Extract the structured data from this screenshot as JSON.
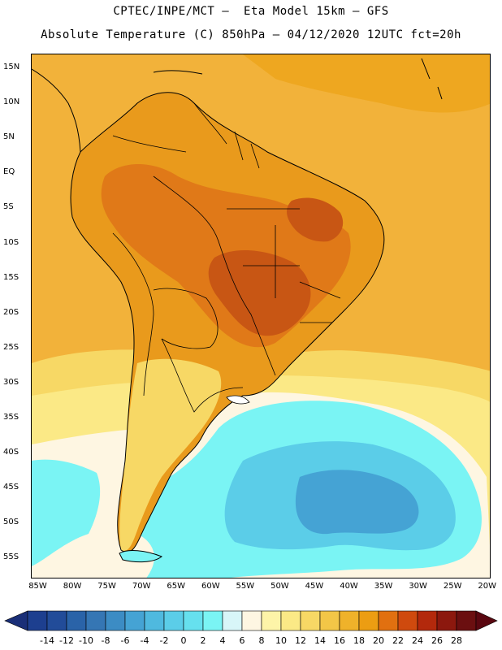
{
  "header": {
    "title_line1": "CPTEC/INPE/MCT –  Eta Model 15km – GFS",
    "title_line2": "Absolute Temperature (C) 850hPa – 04/12/2020 12UTC fct=20h"
  },
  "map": {
    "region": "South America",
    "lat_range": [
      -58,
      17
    ],
    "lon_range": [
      -86,
      -19.5
    ],
    "lat_labels": [
      "15N",
      "10N",
      "5N",
      "EQ",
      "5S",
      "10S",
      "15S",
      "20S",
      "25S",
      "30S",
      "35S",
      "40S",
      "45S",
      "50S",
      "55S"
    ],
    "lat_values": [
      15,
      10,
      5,
      0,
      -5,
      -10,
      -15,
      -20,
      -25,
      -30,
      -35,
      -40,
      -45,
      -50,
      -55
    ],
    "lon_labels": [
      "85W",
      "80W",
      "75W",
      "70W",
      "65W",
      "60W",
      "55W",
      "50W",
      "45W",
      "40W",
      "35W",
      "30W",
      "25W",
      "20W"
    ],
    "lon_values": [
      -85,
      -80,
      -75,
      -70,
      -65,
      -60,
      -55,
      -50,
      -45,
      -40,
      -35,
      -30,
      -25,
      -20
    ]
  },
  "colorbar": {
    "levels": [
      "-14",
      "-12",
      "-10",
      "-8",
      "-6",
      "-4",
      "-2",
      "0",
      "2",
      "4",
      "6",
      "8",
      "10",
      "12",
      "14",
      "16",
      "18",
      "20",
      "22",
      "24",
      "26",
      "28"
    ],
    "colors": [
      "#1d3f8f",
      "#224c99",
      "#2a63a8",
      "#3576b4",
      "#3c8cc4",
      "#45a3d4",
      "#4fb9df",
      "#5bcde8",
      "#66e0ee",
      "#7af4f4",
      "#d8f6f8",
      "#fef6e2",
      "#fdf4a8",
      "#fbe986",
      "#f7d865",
      "#f3c647",
      "#efb22a",
      "#ec9d12",
      "#e17010",
      "#cf4a0e",
      "#b3290c",
      "#8c180e",
      "#6b0f10"
    ],
    "under_color": "#1a2f78",
    "over_color": "#5a0710"
  },
  "field_colors": {
    "background": "#f2b23a",
    "ocean_warm": "#f4bf3f",
    "ocean_north": "#eea720",
    "continent_warm": "#e99a1c",
    "continent_hot": "#e07918",
    "hot_core": "#c85614",
    "mild_yellow": "#f7d865",
    "pale_yellow": "#fbe986",
    "cream": "#fef6e2",
    "cold_light": "#7af4f4",
    "cold_mid": "#5bcde8",
    "cold_deep": "#45a3d4"
  }
}
